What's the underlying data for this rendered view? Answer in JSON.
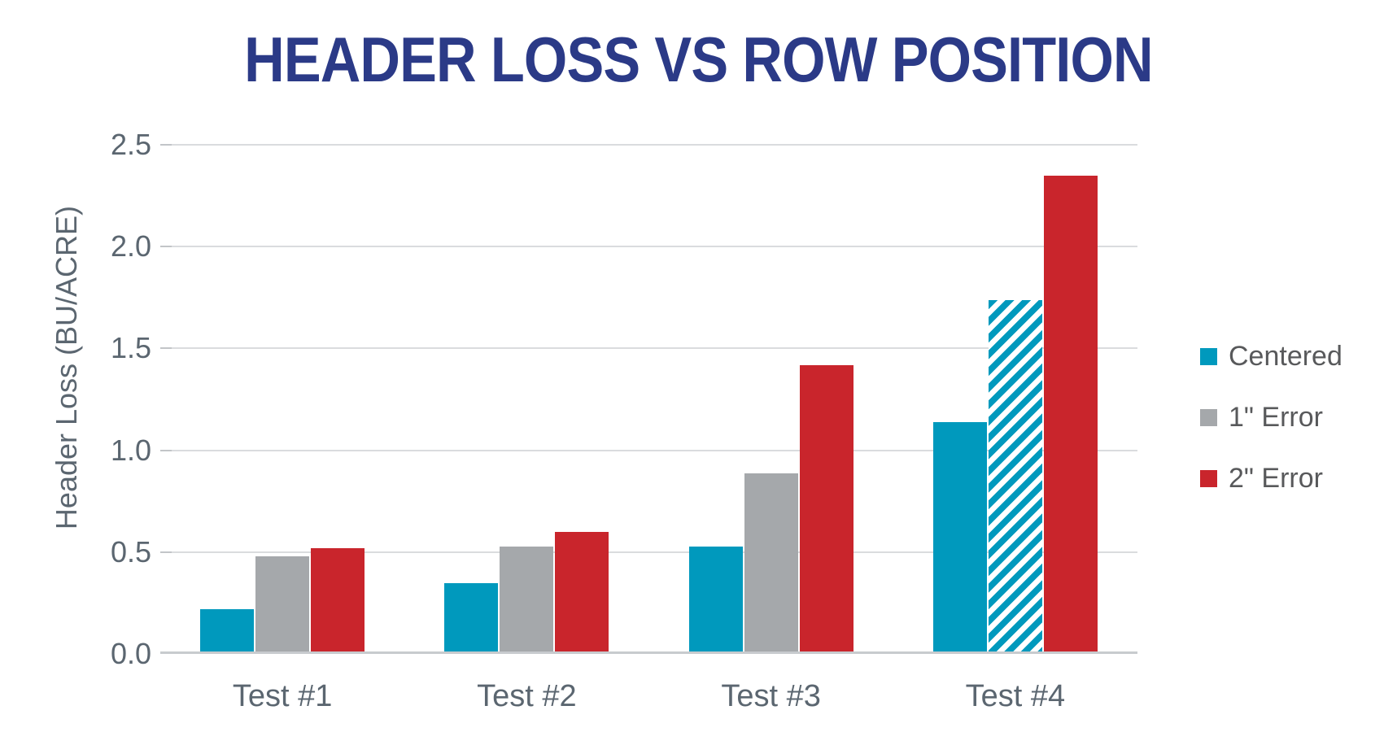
{
  "chart_data": {
    "type": "bar",
    "title": "HEADER LOSS VS ROW POSITION",
    "xlabel": "",
    "ylabel": "Header Loss (BU/ACRE)",
    "categories": [
      "Test #1",
      "Test #2",
      "Test #3",
      "Test #4"
    ],
    "series": [
      {
        "name": "Centered",
        "color": "#0099BD",
        "values": [
          0.21,
          0.34,
          0.52,
          1.13
        ]
      },
      {
        "name": "1\" Error",
        "color": "#A5A8AB",
        "values": [
          0.47,
          0.52,
          0.88,
          1.73
        ]
      },
      {
        "name": "2\" Error",
        "color": "#C9252C",
        "values": [
          0.51,
          0.59,
          1.41,
          2.34
        ]
      }
    ],
    "hatched_bar": {
      "series_index": 1,
      "category_index": 3,
      "style": "diagonal-stripes",
      "stripe_color": "#0099BD",
      "background_color": "#FFFFFF"
    },
    "ylim": [
      0,
      2.5
    ],
    "yticks": [
      0.0,
      0.5,
      1.0,
      1.5,
      2.0,
      2.5
    ],
    "ytick_labels": [
      "0.0",
      "0.5",
      "1.0",
      "1.5",
      "2.0",
      "2.5"
    ],
    "grid": true,
    "legend_position": "right"
  },
  "styles": {
    "title_color": "#2B3A87",
    "axis_text_color": "#5B6670",
    "legend_text_color": "#58595B",
    "gridline_color": "#DADCDE",
    "axis_line_color": "#C8CBCE"
  }
}
